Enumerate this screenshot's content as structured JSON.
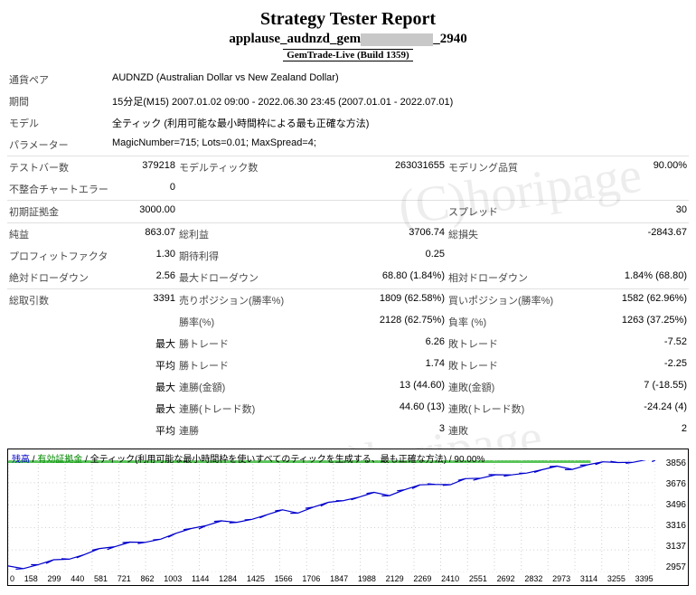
{
  "header": {
    "title": "Strategy Tester Report",
    "subtitle_prefix": "applause_audnzd_gem",
    "subtitle_suffix": "_2940",
    "build": "GemTrade-Live (Build 1359)"
  },
  "info": {
    "pair_label": "通貨ペア",
    "pair_value": "AUDNZD (Australian Dollar vs New Zealand Dollar)",
    "period_label": "期間",
    "period_value": "15分足(M15) 2007.01.02 09:00 - 2022.06.30 23:45 (2007.01.01 - 2022.07.01)",
    "model_label": "モデル",
    "model_value": "全ティック (利用可能な最小時間枠による最も正確な方法)",
    "param_label": "パラメーター",
    "param_value": "MagicNumber=715; Lots=0.01; MaxSpread=4;"
  },
  "row_bars": {
    "c1l": "テストバー数",
    "c1v": "379218",
    "c2l": "モデルティック数",
    "c2v": "263031655",
    "c3l": "モデリング品質",
    "c3v": "90.00%"
  },
  "row_mismatch": {
    "c1l": "不整合チャートエラー",
    "c1v": "0"
  },
  "row_deposit": {
    "c1l": "初期証拠金",
    "c1v": "3000.00",
    "c3l": "スプレッド",
    "c3v": "30"
  },
  "row_netprofit": {
    "c1l": "純益",
    "c1v": "863.07",
    "c2l": "総利益",
    "c2v": "3706.74",
    "c3l": "総損失",
    "c3v": "-2843.67"
  },
  "row_pf": {
    "c1l": "プロフィットファクタ",
    "c1v": "1.30",
    "c2l": "期待利得",
    "c2v": "0.25"
  },
  "row_dd": {
    "c1l": "絶対ドローダウン",
    "c1v": "2.56",
    "c2l": "最大ドローダウン",
    "c2v": "68.80 (1.84%)",
    "c3l": "相対ドローダウン",
    "c3v": "1.84% (68.80)"
  },
  "row_trades": {
    "c1l": "総取引数",
    "c1v": "3391",
    "c2l": "売りポジション(勝率%)",
    "c2v": "1809 (62.58%)",
    "c3l": "買いポジション(勝率%)",
    "c3v": "1582 (62.96%)"
  },
  "row_winrate": {
    "c2l": "勝率(%)",
    "c2v": "2128 (62.75%)",
    "c3l": "負率 (%)",
    "c3v": "1263 (37.25%)"
  },
  "row_maxtrade": {
    "c1v": "最大",
    "c2l": "勝トレード",
    "c2v": "6.26",
    "c3l": "敗トレード",
    "c3v": "-7.52"
  },
  "row_avgtrade": {
    "c1v": "平均",
    "c2l": "勝トレード",
    "c2v": "1.74",
    "c3l": "敗トレード",
    "c3v": "-2.25"
  },
  "row_maxconsec_amt": {
    "c1v": "最大",
    "c2l": "連勝(金額)",
    "c2v": "13 (44.60)",
    "c3l": "連敗(金額)",
    "c3v": "7 (-18.55)"
  },
  "row_maxconsec_cnt": {
    "c1v": "最大",
    "c2l": "連勝(トレード数)",
    "c2v": "44.60 (13)",
    "c3l": "連敗(トレード数)",
    "c3v": "-24.24 (4)"
  },
  "row_avgconsec": {
    "c1v": "平均",
    "c2l": "連勝",
    "c2v": "3",
    "c3l": "連敗",
    "c3v": "2"
  },
  "chart": {
    "legend_balance": "残高",
    "legend_equity": "有効証拠金",
    "legend_method": "全ティック(利用可能な最小時間枠を使いすべてのティックを生成する、最も正確な方法)",
    "legend_pct": "90.00%",
    "y_ticks": [
      "3856",
      "3676",
      "3496",
      "3316",
      "3137",
      "2957"
    ],
    "x_ticks": [
      "0",
      "158",
      "299",
      "440",
      "581",
      "721",
      "862",
      "1003",
      "1144",
      "1284",
      "1425",
      "1566",
      "1706",
      "1847",
      "1988",
      "2129",
      "2269",
      "2410",
      "2551",
      "2692",
      "2832",
      "2973",
      "3114",
      "3255",
      "3395"
    ],
    "ylim": [
      2957,
      3856
    ],
    "xlim": [
      0,
      3395
    ],
    "line_color": "#0000cc",
    "grid_color": "#d0d0d0",
    "quality_bar_color": "#58c558",
    "series": [
      [
        0,
        3000
      ],
      [
        80,
        2995
      ],
      [
        160,
        3020
      ],
      [
        240,
        3050
      ],
      [
        320,
        3070
      ],
      [
        400,
        3100
      ],
      [
        480,
        3140
      ],
      [
        560,
        3170
      ],
      [
        640,
        3200
      ],
      [
        720,
        3190
      ],
      [
        800,
        3230
      ],
      [
        880,
        3270
      ],
      [
        960,
        3300
      ],
      [
        1040,
        3340
      ],
      [
        1120,
        3370
      ],
      [
        1200,
        3350
      ],
      [
        1280,
        3390
      ],
      [
        1360,
        3420
      ],
      [
        1440,
        3450
      ],
      [
        1520,
        3440
      ],
      [
        1600,
        3480
      ],
      [
        1680,
        3510
      ],
      [
        1760,
        3540
      ],
      [
        1840,
        3560
      ],
      [
        1920,
        3590
      ],
      [
        2000,
        3580
      ],
      [
        2080,
        3620
      ],
      [
        2160,
        3650
      ],
      [
        2240,
        3670
      ],
      [
        2320,
        3660
      ],
      [
        2400,
        3700
      ],
      [
        2480,
        3720
      ],
      [
        2560,
        3740
      ],
      [
        2640,
        3730
      ],
      [
        2720,
        3760
      ],
      [
        2800,
        3780
      ],
      [
        2880,
        3800
      ],
      [
        2960,
        3790
      ],
      [
        3040,
        3820
      ],
      [
        3120,
        3835
      ],
      [
        3200,
        3845
      ],
      [
        3280,
        3840
      ],
      [
        3360,
        3855
      ],
      [
        3395,
        3863
      ]
    ]
  },
  "watermark": "(C)horipage"
}
